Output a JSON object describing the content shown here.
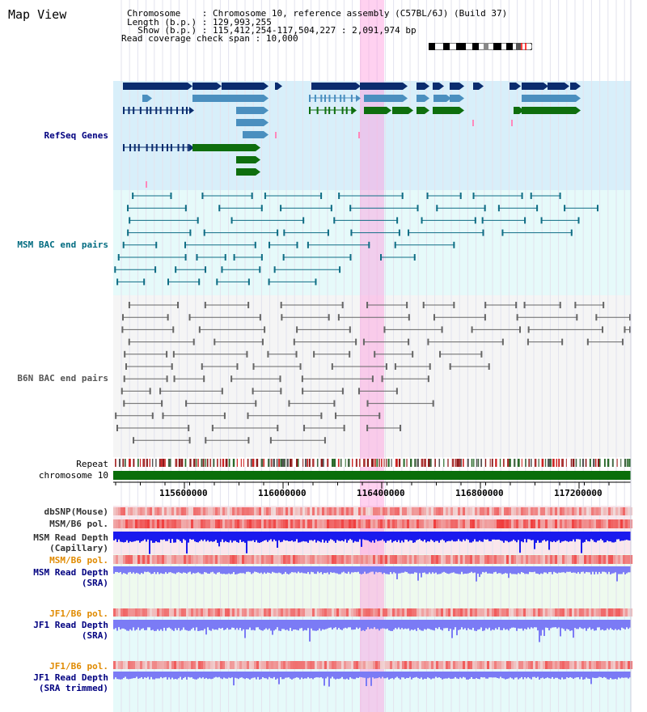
{
  "title": "Map View",
  "header": {
    "chromosome_key": "Chromosome",
    "chromosome_val": "Chromosome 10, reference assembly (C57BL/6J) (Build 37)",
    "length_key": "Length (b.p.)",
    "length_val": "129,993,255",
    "show_key": "Show (b.p.)",
    "show_val": "115,412,254-117,504,227 : 2,091,974 bp",
    "coverage_key": "Read coverage check span",
    "coverage_val": "10,000"
  },
  "tracks": {
    "refseq": "RefSeq Genes",
    "msm_bac": "MSM BAC end pairs",
    "b6n_bac": "B6N BAC end pairs",
    "repeat": "Repeat",
    "chromosome": "chromosome 10",
    "dbsnp": "dbSNP(Mouse)",
    "msm_b6_pol": "MSM/B6 pol.",
    "msm_read_depth_cap_1": "MSM Read Depth",
    "msm_read_depth_cap_2": "(Capillary)",
    "msm_b6_pol_sra": "MSM/B6 pol.",
    "msm_read_depth_sra_1": "MSM Read Depth",
    "msm_read_depth_sra_2": "(SRA)",
    "jf1_b6_pol": "JF1/B6 pol.",
    "jf1_read_depth_1": "JF1 Read Depth",
    "jf1_read_depth_2": "(SRA)",
    "jf1_b6_pol_trim": "JF1/B6 pol.",
    "jf1_read_depth_trim_1": "JF1 Read Depth",
    "jf1_read_depth_trim_2": "(SRA trimmed)"
  },
  "axis": {
    "ticks": [
      "115600000",
      "116000000",
      "116400000",
      "116800000",
      "117200000"
    ]
  },
  "colors": {
    "refseq_dark": "#0a2c6e",
    "refseq_mid": "#4a8fbf",
    "refseq_green": "#0e6e0e",
    "msm_bac": "#0f6d85",
    "b6n_bac": "#666666",
    "highlight": "#ffccee",
    "chrom_green": "#0a6e0a",
    "depth_blue": "#1a1aee",
    "depth_light": "#7b7bf5",
    "label_navy": "#000080",
    "label_teal": "#006b80",
    "label_orange": "#e08a00"
  }
}
